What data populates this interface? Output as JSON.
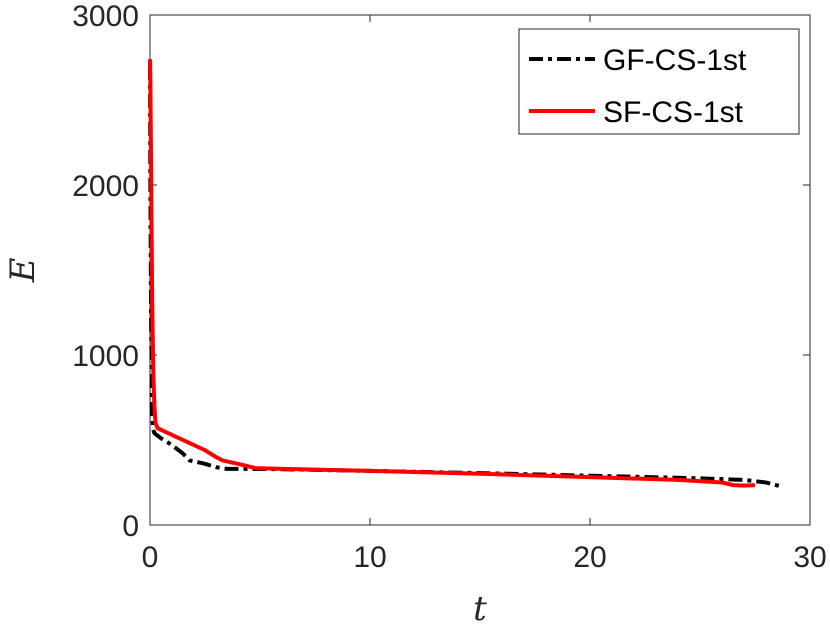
{
  "chart_data": {
    "type": "line",
    "xlabel": "t",
    "ylabel": "E",
    "xlim": [
      0,
      30
    ],
    "ylim": [
      0,
      3000
    ],
    "x_ticks": [
      0,
      10,
      20,
      30
    ],
    "y_ticks": [
      0,
      1000,
      2000,
      3000
    ],
    "x_tick_labels": [
      "0",
      "10",
      "20",
      "30"
    ],
    "y_tick_labels": [
      "0",
      "1000",
      "2000",
      "3000"
    ],
    "grid": false,
    "legend": {
      "position": "top-right",
      "entries": [
        "GF-CS-1st",
        "SF-CS-1st"
      ]
    },
    "series": [
      {
        "name": "GF-CS-1st",
        "color": "#000000",
        "style": "dashdot",
        "x": [
          0,
          0.02,
          0.05,
          0.1,
          0.15,
          0.2,
          0.5,
          1,
          1.5,
          1.8,
          2.5,
          3,
          3.5,
          4.5,
          6,
          8,
          10,
          15,
          20,
          25,
          27,
          28,
          28.6
        ],
        "y": [
          2700,
          2000,
          1200,
          650,
          560,
          540,
          510,
          470,
          420,
          380,
          360,
          340,
          330,
          330,
          328,
          323,
          318,
          305,
          290,
          275,
          265,
          250,
          230
        ]
      },
      {
        "name": "SF-CS-1st",
        "color": "#ff0000",
        "style": "solid",
        "x": [
          0,
          0.02,
          0.05,
          0.1,
          0.15,
          0.2,
          0.25,
          0.35,
          0.5,
          1,
          2,
          2.5,
          3,
          3.3,
          4,
          4.8,
          6,
          10,
          15,
          20,
          24,
          26,
          26.5,
          27,
          27.5
        ],
        "y": [
          2740,
          2600,
          2100,
          1300,
          900,
          700,
          600,
          570,
          560,
          530,
          470,
          440,
          400,
          380,
          360,
          335,
          330,
          318,
          302,
          282,
          265,
          250,
          235,
          232,
          235
        ]
      }
    ]
  }
}
